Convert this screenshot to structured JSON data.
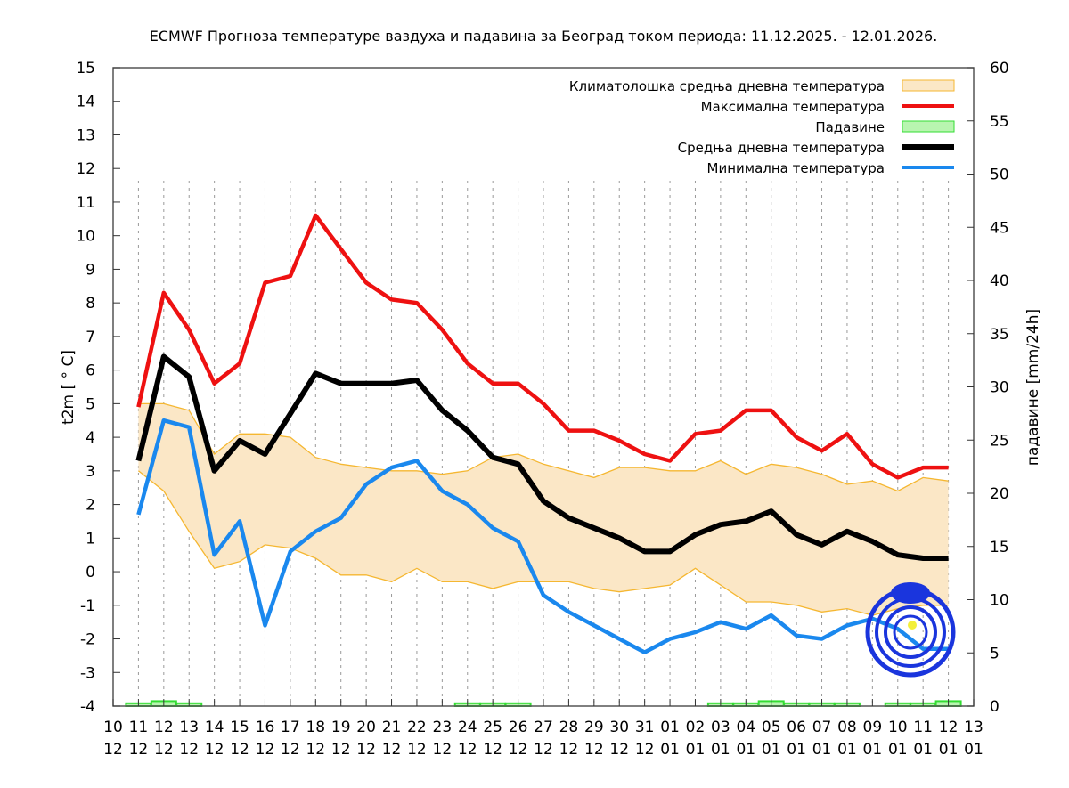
{
  "chart_data": {
    "type": "line",
    "title": "ECMWF Прогноза температуре ваздуха и падавина за Београд током периода: 11.12.2025. - 12.01.2026.",
    "ylabel": "t2m [ ° C]",
    "y2label": "падавине [mm/24h]",
    "ylim": [
      -4,
      15
    ],
    "y2lim": [
      0,
      60
    ],
    "yticks": [
      -4,
      -3,
      -2,
      -1,
      0,
      1,
      2,
      3,
      4,
      5,
      6,
      7,
      8,
      9,
      10,
      11,
      12,
      13,
      14,
      15
    ],
    "y2ticks": [
      0,
      5,
      10,
      15,
      20,
      25,
      30,
      35,
      40,
      45,
      50,
      55,
      60
    ],
    "xtick_days": [
      "10",
      "11",
      "12",
      "13",
      "14",
      "15",
      "16",
      "17",
      "18",
      "19",
      "20",
      "21",
      "22",
      "23",
      "24",
      "25",
      "26",
      "27",
      "28",
      "29",
      "30",
      "31",
      "01",
      "02",
      "03",
      "04",
      "05",
      "06",
      "07",
      "08",
      "09",
      "10",
      "11",
      "12",
      "13"
    ],
    "xtick_months": [
      "12",
      "12",
      "12",
      "12",
      "12",
      "12",
      "12",
      "12",
      "12",
      "12",
      "12",
      "12",
      "12",
      "12",
      "12",
      "12",
      "12",
      "12",
      "12",
      "12",
      "12",
      "12",
      "01",
      "01",
      "01",
      "01",
      "01",
      "01",
      "01",
      "01",
      "01",
      "01",
      "01",
      "01",
      "01"
    ],
    "x_start_index": 1,
    "legend_position": "top-right",
    "legend": {
      "climate": "Климатолошка средња дневна температура",
      "max": "Максимална температура",
      "precip": "Падавине",
      "mean": "Средња дневна температура",
      "min": "Минимална температура"
    },
    "colors": {
      "climate_fill": "#fbe7c6",
      "climate_line": "#f5b731",
      "max": "#ee1111",
      "precip": "#33dd33",
      "mean": "#000000",
      "min": "#1a88ee"
    },
    "series": [
      {
        "name": "max",
        "values": [
          4.9,
          8.3,
          7.2,
          5.6,
          6.2,
          8.6,
          8.8,
          10.6,
          9.6,
          8.6,
          8.1,
          8.0,
          7.2,
          6.2,
          5.6,
          5.6,
          5.0,
          4.2,
          4.2,
          3.9,
          3.5,
          3.3,
          4.1,
          4.2,
          4.8,
          4.8,
          4.0,
          3.6,
          4.1,
          3.2,
          2.8,
          3.1,
          3.1
        ]
      },
      {
        "name": "mean",
        "values": [
          3.3,
          6.4,
          5.8,
          3.0,
          3.9,
          3.5,
          4.7,
          5.9,
          5.6,
          5.6,
          5.6,
          5.7,
          4.8,
          4.2,
          3.4,
          3.2,
          2.1,
          1.6,
          1.3,
          1.0,
          0.6,
          0.6,
          1.1,
          1.4,
          1.5,
          1.8,
          1.1,
          0.8,
          1.2,
          0.9,
          0.5,
          0.4,
          0.4
        ]
      },
      {
        "name": "min",
        "values": [
          1.7,
          4.5,
          4.3,
          0.5,
          1.5,
          -1.6,
          0.6,
          1.2,
          1.6,
          2.6,
          3.1,
          3.3,
          2.4,
          2.0,
          1.3,
          0.9,
          -0.7,
          -1.2,
          -1.6,
          -2.0,
          -2.4,
          -2.0,
          -1.8,
          -1.5,
          -1.7,
          -1.3,
          -1.9,
          -2.0,
          -1.6,
          -1.4,
          -1.7,
          -2.3,
          -2.3
        ]
      },
      {
        "name": "climate_upper",
        "values": [
          5.0,
          5.0,
          4.8,
          3.5,
          4.1,
          4.1,
          4.0,
          3.4,
          3.2,
          3.1,
          3.0,
          3.0,
          2.9,
          3.0,
          3.4,
          3.5,
          3.2,
          3.0,
          2.8,
          3.1,
          3.1,
          3.0,
          3.0,
          3.3,
          2.9,
          3.2,
          3.1,
          2.9,
          2.6,
          2.7,
          2.4,
          2.8,
          2.7
        ]
      },
      {
        "name": "climate_lower",
        "values": [
          3.0,
          2.4,
          1.2,
          0.1,
          0.3,
          0.8,
          0.7,
          0.4,
          -0.1,
          -0.1,
          -0.3,
          0.1,
          -0.3,
          -0.3,
          -0.5,
          -0.3,
          -0.3,
          -0.3,
          -0.5,
          -0.6,
          -0.5,
          -0.4,
          0.1,
          -0.4,
          -0.9,
          -0.9,
          -1.0,
          -1.2,
          -1.1,
          -1.3,
          -1.1,
          -1.0,
          -1.0
        ]
      },
      {
        "name": "precip",
        "values": [
          0.1,
          0.3,
          0.1,
          0,
          0,
          0,
          0,
          0,
          0,
          0,
          0,
          0,
          0,
          0.1,
          0.1,
          0.1,
          0,
          0,
          0,
          0,
          0,
          0,
          0,
          0.1,
          0.1,
          0.3,
          0.1,
          0.1,
          0.1,
          0,
          0.1,
          0.1,
          0.3
        ]
      }
    ]
  }
}
